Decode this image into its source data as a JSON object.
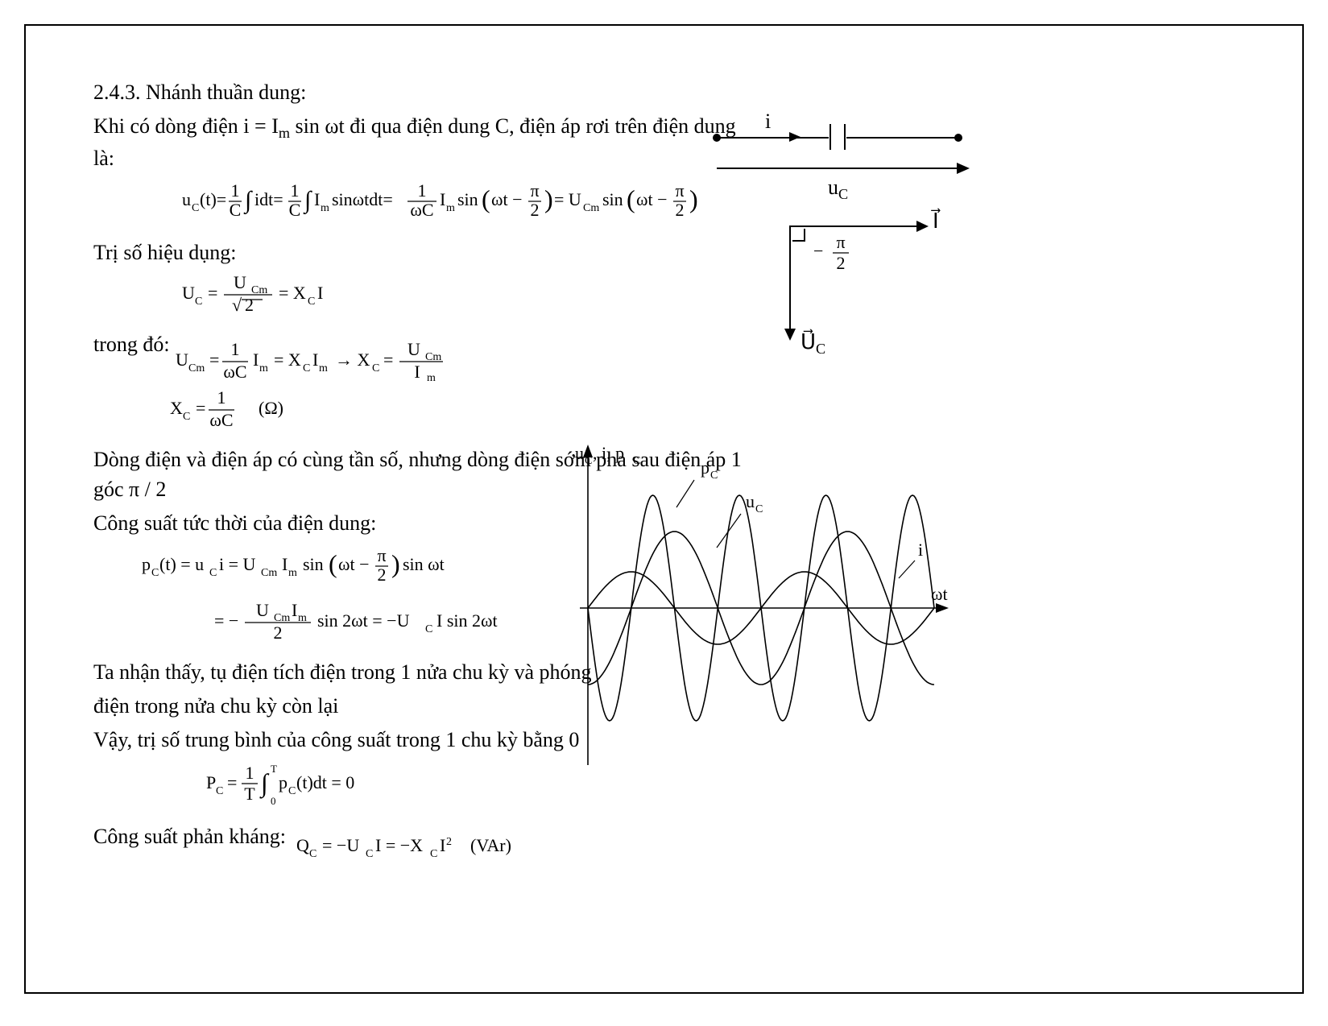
{
  "section_number": "2.4.3.",
  "section_title": "Nhánh thuần dung:",
  "line_intro_pre": "Khi có dòng điện i = I",
  "line_intro_sub": "m",
  "line_intro_mid": " sin ωt  đi qua điện dung C, điện áp rơi trên điện dung là:",
  "uc_formula_svg_alt": "u_C(t) = (1/C)∫i dt = (1/C)∫I_m sinωt dt = (1/ωC) I_m sin(ωt − π/2) = U_Cm sin(ωt − π/2)",
  "rms_label": "Trị số hiệu dụng:",
  "rms_svg_alt": "U_C = U_Cm / √2 = X_C I",
  "trongdo_label": "trong đó:",
  "ucm_svg_alt": "U_Cm = (1/ωC) I_m = X_C I_m → X_C = U_Cm / I_m",
  "xc_svg_alt": "X_C = 1/(ωC)   (Ω)",
  "phase_line_pre": "Dòng điện và điện áp có cùng tần số, nhưng dòng điện  sớm pha sau điện áp 1 góc ",
  "phase_line_pi": "π / 2",
  "power_label": "Công suất tức thời của điện dung:",
  "pc_line1_alt": "p_C(t) = u_C i = U_Cm I_m sin(ωt − π/2) sin ωt",
  "pc_line2_alt": "= −(U_Cm I_m / 2) sin 2ωt = −U_C I sin 2ωt",
  "note_line1": "Ta nhận thấy, tụ điện tích điện trong 1 nửa chu kỳ và phóng",
  "note_line2": "điện trong nửa chu kỳ còn lại",
  "avg_line": "Vậy, trị số trung bình của công suất trong 1 chu kỳ bằng 0",
  "pc_avg_alt": "P_C = (1/T) ∫_0^T p_C(t) dt = 0",
  "react_label": "Công suất phản kháng:",
  "qc_alt": "Q_C = −U_C I = −X_C I²   (VAr)",
  "circuit_i_label": "i",
  "circuit_uc_label": "u",
  "circuit_uc_sub": "C",
  "phasor_I_label": "I⃗",
  "phasor_Uc_label": "U⃗",
  "phasor_Uc_sub": "C",
  "phasor_angle": "− π/2",
  "wave_ylabel": "u_C, i, p_C",
  "wave_xlabel": "ωt",
  "wave_series": {
    "pC": {
      "label": "p_C",
      "amp": 140,
      "freq": 2,
      "phase_deg": 180,
      "color": "#000000"
    },
    "uC": {
      "label": "u_C",
      "amp": 95,
      "freq": 1,
      "phase_deg": -90,
      "color": "#000000"
    },
    "i": {
      "label": "i",
      "amp": 45,
      "freq": 1,
      "phase_deg": 0,
      "color": "#000000"
    }
  },
  "colors": {
    "stroke": "#000000",
    "bg": "#ffffff"
  },
  "font": {
    "body_pt": 20,
    "math_pt": 20
  }
}
